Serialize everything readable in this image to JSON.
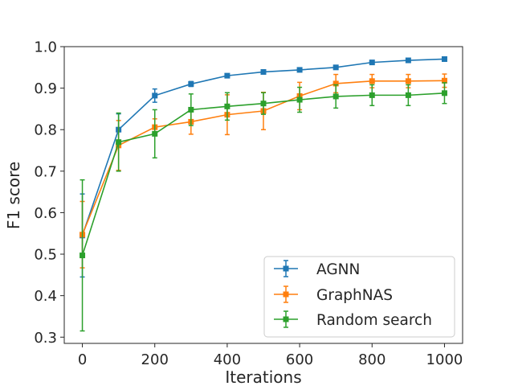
{
  "chart_data": {
    "type": "line",
    "title": "",
    "xlabel": "Iterations",
    "ylabel": "F1 score",
    "xlim": [
      -50,
      1050
    ],
    "ylim": [
      0.285,
      1.0
    ],
    "xticks": [
      0,
      200,
      400,
      600,
      800,
      1000
    ],
    "xtick_labels": [
      "0",
      "200",
      "400",
      "600",
      "800",
      "1000"
    ],
    "yticks": [
      0.3,
      0.4,
      0.5,
      0.6,
      0.7,
      0.8,
      0.9,
      1.0
    ],
    "ytick_labels": [
      "0.3",
      "0.4",
      "0.5",
      "0.6",
      "0.7",
      "0.8",
      "0.9",
      "1.0"
    ],
    "grid": false,
    "legend_position": "bottom-right",
    "x": [
      0,
      100,
      200,
      300,
      400,
      500,
      600,
      700,
      800,
      900,
      1000
    ],
    "series": [
      {
        "name": "AGNN",
        "color": "#1f77b4",
        "values": [
          0.545,
          0.8,
          0.882,
          0.91,
          0.93,
          0.939,
          0.944,
          0.95,
          0.962,
          0.967,
          0.97
        ],
        "errors": [
          0.1,
          0.038,
          0.016,
          0.006,
          0.004,
          0.004,
          0.004,
          0.004,
          0.004,
          0.003,
          0.003
        ]
      },
      {
        "name": "GraphNAS",
        "color": "#ff7f0e",
        "values": [
          0.547,
          0.762,
          0.806,
          0.819,
          0.836,
          0.845,
          0.881,
          0.911,
          0.917,
          0.917,
          0.918
        ],
        "errors": [
          0.08,
          0.06,
          0.02,
          0.03,
          0.048,
          0.045,
          0.033,
          0.022,
          0.016,
          0.016,
          0.016
        ]
      },
      {
        "name": "Random search",
        "color": "#2ca02c",
        "values": [
          0.497,
          0.77,
          0.79,
          0.848,
          0.856,
          0.863,
          0.872,
          0.88,
          0.883,
          0.883,
          0.888
        ],
        "errors": [
          0.182,
          0.07,
          0.058,
          0.038,
          0.033,
          0.026,
          0.03,
          0.028,
          0.025,
          0.025,
          0.025
        ]
      }
    ]
  }
}
